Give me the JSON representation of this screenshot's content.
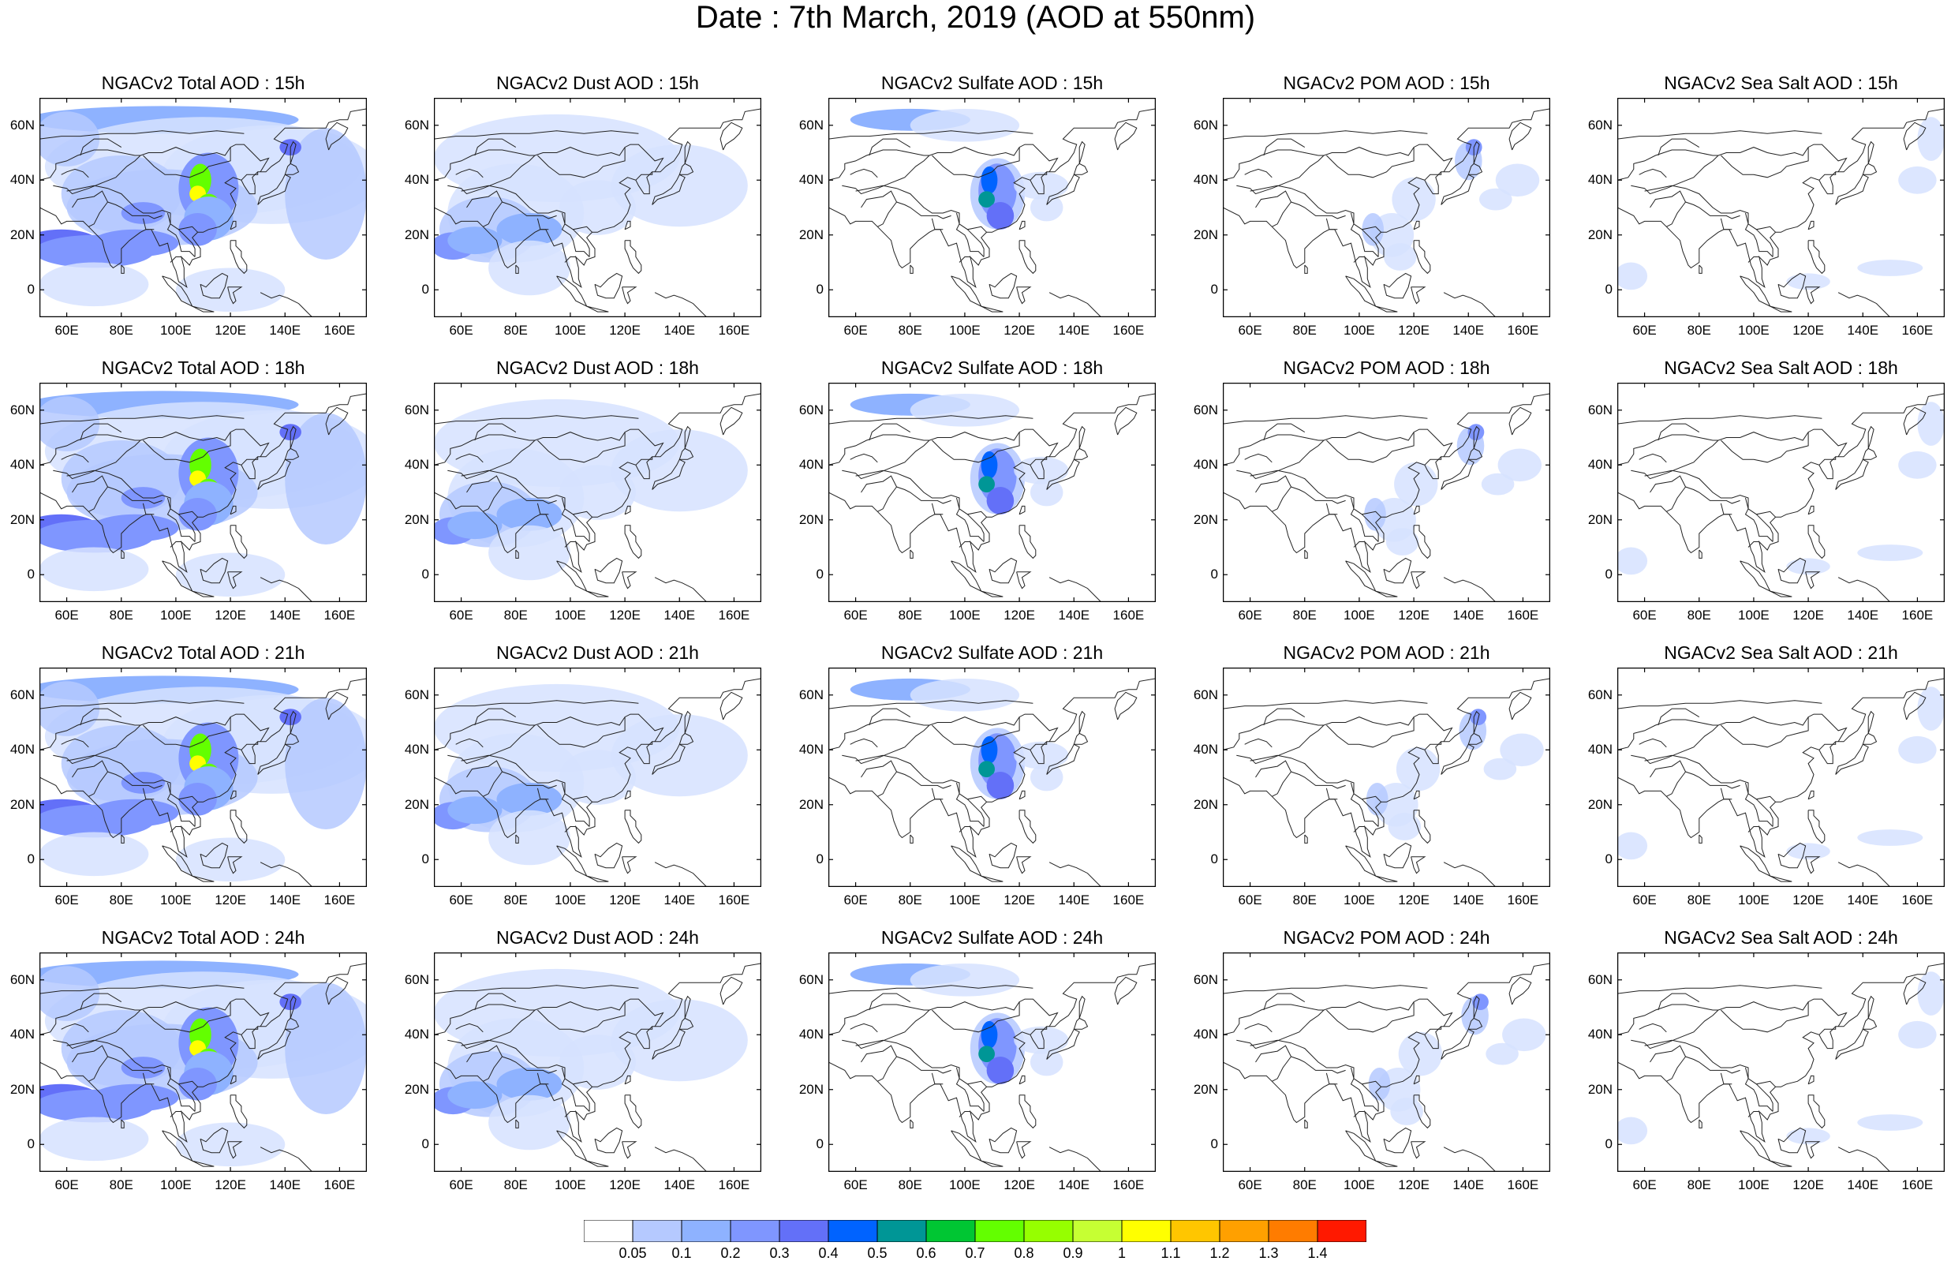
{
  "title": "Date : 7th March, 2019 (AOD at 550nm)",
  "lat_ticks": [
    "60N",
    "40N",
    "20N",
    "0"
  ],
  "lon_ticks": [
    "60E",
    "80E",
    "100E",
    "120E",
    "140E",
    "160E"
  ],
  "lat_values": [
    60,
    40,
    20,
    0
  ],
  "lon_values": [
    60,
    80,
    100,
    120,
    140,
    160
  ],
  "map_extent": {
    "lon": [
      50,
      170
    ],
    "lat": [
      -10,
      70
    ]
  },
  "panels": [
    [
      "NGACv2 Total AOD : 15h",
      "NGACv2 Dust AOD : 15h",
      "NGACv2 Sulfate AOD : 15h",
      "NGACv2 POM AOD : 15h",
      "NGACv2 Sea Salt AOD : 15h"
    ],
    [
      "NGACv2 Total AOD : 18h",
      "NGACv2 Dust AOD : 18h",
      "NGACv2 Sulfate AOD : 18h",
      "NGACv2 POM AOD : 18h",
      "NGACv2 Sea Salt AOD : 18h"
    ],
    [
      "NGACv2 Total AOD : 21h",
      "NGACv2 Dust AOD : 21h",
      "NGACv2 Sulfate AOD : 21h",
      "NGACv2 POM AOD : 21h",
      "NGACv2 Sea Salt AOD : 21h"
    ],
    [
      "NGACv2 Total AOD : 24h",
      "NGACv2 Dust AOD : 24h",
      "NGACv2 Sulfate AOD : 24h",
      "NGACv2 POM AOD : 24h",
      "NGACv2 Sea Salt  AOD : 24h"
    ]
  ],
  "colorbar": {
    "labels": [
      "0.05",
      "0.1",
      "0.2",
      "0.3",
      "0.4",
      "0.5",
      "0.6",
      "0.7",
      "0.8",
      "0.9",
      "1",
      "1.1",
      "1.2",
      "1.3",
      "1.4"
    ],
    "colors": [
      "#ffffff",
      "#d6e2ff",
      "#b5c9ff",
      "#8eb2ff",
      "#7f96ff",
      "#6370f8",
      "#0063ff",
      "#009696",
      "#00c633",
      "#63ff00",
      "#96ff00",
      "#c6ff33",
      "#ffff00",
      "#ffc600",
      "#ffa000",
      "#ff7c00",
      "#ff1900"
    ]
  }
}
